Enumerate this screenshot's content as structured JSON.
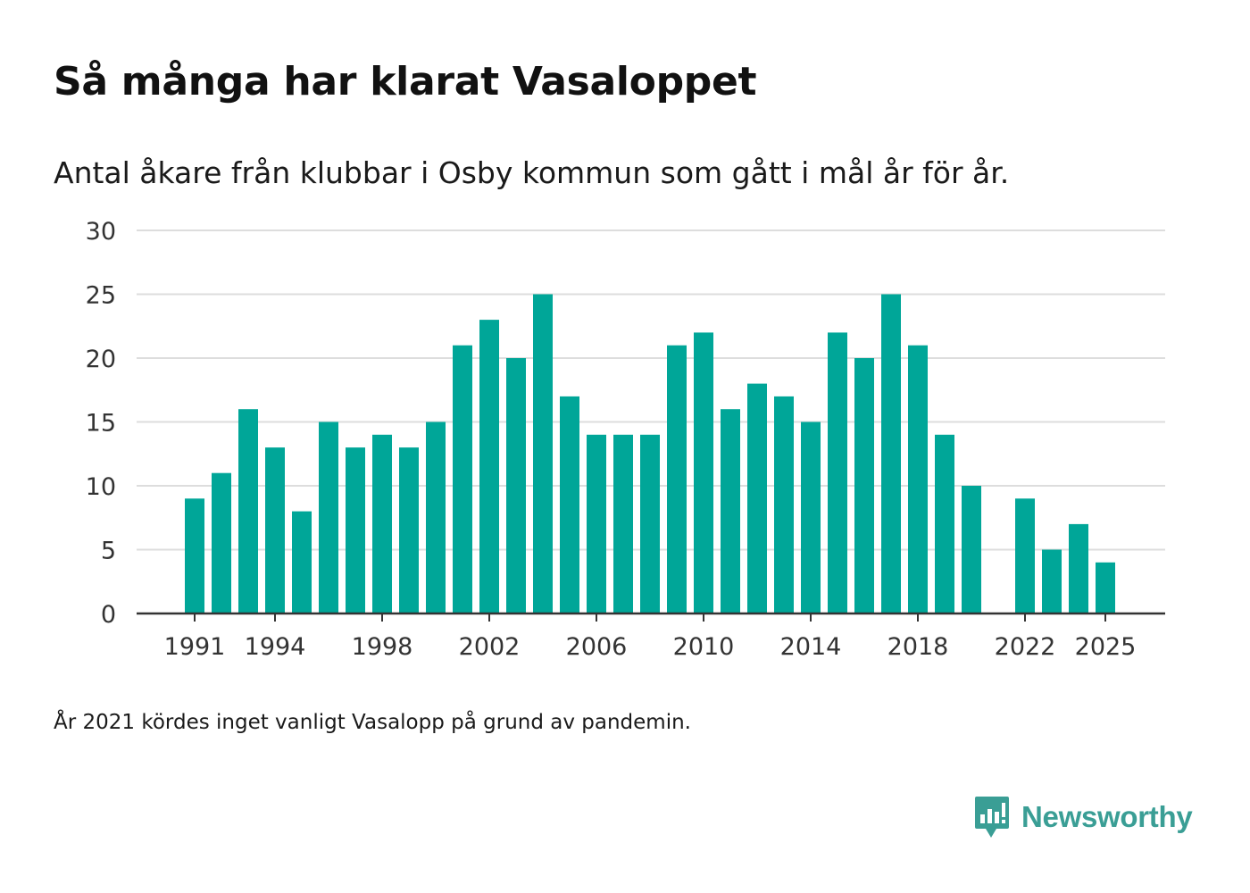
{
  "header": {
    "title": "Så många har klarat Vasaloppet",
    "subtitle": "Antal åkare från klubbar i Osby kommun som gått i mål år för år."
  },
  "footnote": "År 2021 kördes inget vanligt Vasalopp på grund av pandemin.",
  "brand": {
    "name": "Newsworthy",
    "icon": "newsworthy-logo-icon",
    "color": "#3a9e95"
  },
  "colors": {
    "bar": "#00a698",
    "grid": "#dddddd",
    "axis": "#333333",
    "tick_text": "#333333"
  },
  "chart_data": {
    "type": "bar",
    "title": "Så många har klarat Vasaloppet",
    "xlabel": "",
    "ylabel": "",
    "ylim": [
      0,
      30
    ],
    "yticks": [
      0,
      5,
      10,
      15,
      20,
      25,
      30
    ],
    "xticks": [
      1991,
      1994,
      1998,
      2002,
      2006,
      2010,
      2014,
      2018,
      2022,
      2025
    ],
    "grid": true,
    "categories": [
      1991,
      1992,
      1993,
      1994,
      1995,
      1996,
      1997,
      1998,
      1999,
      2000,
      2001,
      2002,
      2003,
      2004,
      2005,
      2006,
      2007,
      2008,
      2009,
      2010,
      2011,
      2012,
      2013,
      2014,
      2015,
      2016,
      2017,
      2018,
      2019,
      2020,
      2021,
      2022,
      2023,
      2024,
      2025
    ],
    "values": [
      9,
      11,
      16,
      13,
      8,
      15,
      13,
      14,
      13,
      15,
      21,
      23,
      20,
      25,
      17,
      14,
      14,
      14,
      21,
      22,
      16,
      18,
      17,
      15,
      22,
      20,
      25,
      21,
      14,
      10,
      null,
      9,
      5,
      7,
      4
    ]
  }
}
